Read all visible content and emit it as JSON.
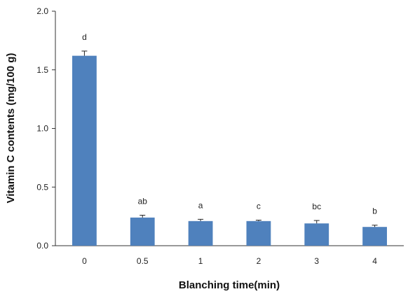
{
  "chart_data": {
    "type": "bar",
    "title": "",
    "xlabel": "Blanching time(min)",
    "ylabel": "Vitamin C contents (mg/100 g)",
    "ylim": [
      0,
      2.0
    ],
    "yticks": [
      "0.0",
      "0.5",
      "1.0",
      "1.5",
      "2.0"
    ],
    "categories": [
      "0",
      "0.5",
      "1",
      "2",
      "3",
      "4"
    ],
    "values": [
      1.62,
      0.24,
      0.21,
      0.21,
      0.19,
      0.16
    ],
    "errors": [
      0.04,
      0.02,
      0.015,
      0.008,
      0.025,
      0.015
    ],
    "significance": [
      "d",
      "ab",
      "a",
      "c",
      "bc",
      "b"
    ],
    "bar_color": "#4f81bd",
    "grid": false,
    "legend": "none"
  }
}
